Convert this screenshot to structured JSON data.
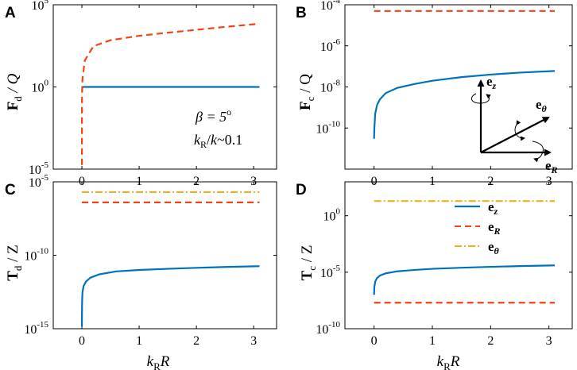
{
  "figure": {
    "xlabel": {
      "main": "k",
      "sub": "R",
      "tail": "R"
    },
    "x_ticks": [
      "0",
      "1",
      "2",
      "3"
    ],
    "colors": {
      "ez": "#0072BD",
      "eR": "#EE4416",
      "etheta": "#EDB120"
    }
  },
  "chart_data": [
    {
      "panel": "A",
      "type": "line",
      "scale_y": "log",
      "xlim": [
        -0.5,
        3.4
      ],
      "ylim_exp": [
        -5,
        5
      ],
      "ytick_exps": [
        -5,
        0,
        5
      ],
      "ylabel": {
        "main": "F",
        "sub": "d",
        "tail": " / Q"
      },
      "series": [
        {
          "name": "e_z",
          "color": "#0072BD",
          "dash": "solid",
          "x": [
            0,
            0.5,
            1,
            1.5,
            2,
            2.5,
            3.1
          ],
          "y": [
            1,
            1,
            1,
            1,
            1,
            1,
            1
          ]
        },
        {
          "name": "e_R",
          "color": "#EE4416",
          "dash": "dashed",
          "x": [
            0,
            0.002,
            0.01,
            0.05,
            0.2,
            0.5,
            1,
            1.5,
            2,
            2.5,
            3.1
          ],
          "y": [
            1e-06,
            0.3,
            3,
            40,
            300,
            700,
            1300,
            2000,
            3000,
            4500,
            7000
          ]
        }
      ],
      "annotations": [
        {
          "id": "beta",
          "lines": [
            "β = 5",
            "o"
          ]
        },
        {
          "id": "kratio",
          "text": "k_R/k~0.1"
        }
      ]
    },
    {
      "panel": "B",
      "type": "line",
      "scale_y": "log",
      "xlim": [
        -0.5,
        3.4
      ],
      "ylim_exp": [
        -12,
        -4
      ],
      "ytick_exps": [
        -10,
        -8,
        -6,
        -4
      ],
      "ylabel": {
        "main": "F",
        "sub": "c",
        "tail": " / Q"
      },
      "series": [
        {
          "name": "e_R",
          "color": "#EE4416",
          "dash": "dashed",
          "x": [
            0,
            3.1
          ],
          "y": [
            5e-05,
            5e-05
          ]
        },
        {
          "name": "e_z",
          "color": "#0072BD",
          "dash": "solid",
          "x": [
            0,
            0.005,
            0.02,
            0.05,
            0.1,
            0.2,
            0.4,
            0.7,
            1,
            1.5,
            2,
            2.5,
            3.1
          ],
          "y": [
            3e-11,
            1e-10,
            5e-10,
            1.3e-09,
            2.5e-09,
            5e-09,
            9e-09,
            1.4e-08,
            2e-08,
            3e-08,
            4e-08,
            5e-08,
            6e-08
          ]
        }
      ],
      "inset": {
        "labels": [
          "e_z",
          "e_θ",
          "e_R"
        ]
      }
    },
    {
      "panel": "C",
      "type": "line",
      "scale_y": "log",
      "xlim": [
        -0.5,
        3.4
      ],
      "ylim_exp": [
        -15,
        -5
      ],
      "ytick_exps": [
        -15,
        -10,
        -5
      ],
      "ylabel": {
        "main": "T",
        "sub": "d",
        "tail": " / Z"
      },
      "series": [
        {
          "name": "e_θ",
          "color": "#EDB120",
          "dash": "dashdot",
          "x": [
            0,
            3.1
          ],
          "y": [
            2e-06,
            2e-06
          ]
        },
        {
          "name": "e_R",
          "color": "#EE4416",
          "dash": "dashed",
          "x": [
            0,
            3.1
          ],
          "y": [
            4e-07,
            4e-07
          ]
        },
        {
          "name": "e_z",
          "color": "#0072BD",
          "dash": "solid",
          "x": [
            0,
            0.003,
            0.01,
            0.03,
            0.07,
            0.15,
            0.3,
            0.6,
            1,
            1.5,
            2,
            2.5,
            3.1
          ],
          "y": [
            1.5e-15,
            5e-14,
            3e-13,
            8e-13,
            1.6e-12,
            3e-12,
            5e-12,
            8e-12,
            1e-11,
            1.2e-11,
            1.4e-11,
            1.6e-11,
            1.8e-11
          ]
        }
      ]
    },
    {
      "panel": "D",
      "type": "line",
      "scale_y": "log",
      "xlim": [
        -0.5,
        3.4
      ],
      "ylim_exp": [
        -10,
        3
      ],
      "ytick_exps": [
        -10,
        -5,
        0
      ],
      "ylabel": {
        "main": "T",
        "sub": "c",
        "tail": " / Z"
      },
      "series": [
        {
          "name": "e_θ",
          "color": "#EDB120",
          "dash": "dashdot",
          "x": [
            0,
            3.1
          ],
          "y": [
            20,
            20
          ]
        },
        {
          "name": "e_R",
          "color": "#EE4416",
          "dash": "dashed",
          "x": [
            0,
            3.1
          ],
          "y": [
            2e-08,
            2e-08
          ]
        },
        {
          "name": "e_z",
          "color": "#0072BD",
          "dash": "solid",
          "x": [
            0,
            0.005,
            0.02,
            0.05,
            0.1,
            0.2,
            0.4,
            0.7,
            1,
            1.5,
            2,
            2.5,
            3.1
          ],
          "y": [
            1e-07,
            5e-07,
            1.5e-06,
            3e-06,
            5e-06,
            8e-06,
            1.2e-05,
            1.6e-05,
            2e-05,
            2.5e-05,
            3e-05,
            3.5e-05,
            4e-05
          ]
        }
      ],
      "legend": {
        "position": "top-right",
        "entries": [
          {
            "series": "e_z",
            "label_main": "e",
            "label_sub": "z"
          },
          {
            "series": "e_R",
            "label_main": "e",
            "label_sub": "R"
          },
          {
            "series": "e_θ",
            "label_main": "e",
            "label_sub": "θ"
          }
        ]
      }
    }
  ]
}
